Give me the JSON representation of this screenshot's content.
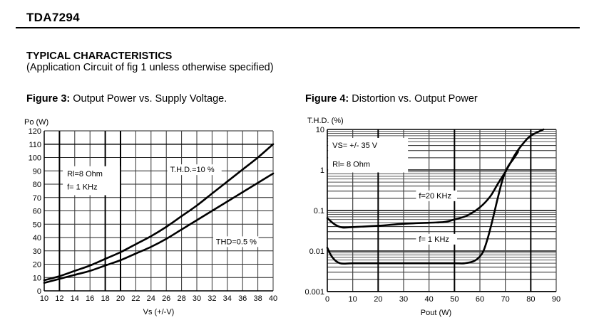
{
  "header": {
    "doc_title": "TDA7294",
    "section_title": "TYPICAL CHARACTERISTICS",
    "section_subtitle": "(Application Circuit of fig 1 unless otherwise specified)"
  },
  "figures": [
    {
      "label": "Figure 3:",
      "caption": "Output Power vs. Supply Voltage."
    },
    {
      "label": "Figure 4:",
      "caption": "Distortion vs. Output Power"
    }
  ],
  "chart_data": [
    {
      "type": "line",
      "title": "Output Power vs. Supply Voltage",
      "xlabel": "Vs (+/-V)",
      "ylabel": "Po (W)",
      "xlim": [
        10,
        40
      ],
      "ylim": [
        0,
        120
      ],
      "xscale": "linear",
      "yscale": "linear",
      "grid": true,
      "x_ticks": [
        "10",
        "12",
        "14",
        "16",
        "18",
        "20",
        "22",
        "24",
        "26",
        "28",
        "30",
        "32",
        "34",
        "36",
        "38",
        "40"
      ],
      "y_ticks": [
        "0",
        "10",
        "20",
        "30",
        "40",
        "50",
        "60",
        "70",
        "80",
        "90",
        "100",
        "110",
        "120"
      ],
      "annotations": [
        {
          "text": "Rl=8 Ohm",
          "x": 13,
          "y": 86
        },
        {
          "text": "f= 1 KHz",
          "x": 13,
          "y": 76
        }
      ],
      "series": [
        {
          "name": "T.H.D.=10 %",
          "label_at": {
            "x": 26.5,
            "y": 89
          },
          "x": [
            10,
            12,
            14,
            16,
            18,
            20,
            22,
            24,
            26,
            28,
            30,
            32,
            34,
            36,
            38,
            40
          ],
          "y": [
            8,
            11,
            15,
            19,
            24,
            29,
            35,
            41,
            48,
            56,
            64,
            73,
            82,
            91,
            100,
            110
          ]
        },
        {
          "name": "THD=0.5 %",
          "label_at": {
            "x": 32.5,
            "y": 35
          },
          "x": [
            10,
            12,
            14,
            16,
            18,
            20,
            22,
            24,
            26,
            28,
            30,
            32,
            34,
            36,
            38,
            40
          ],
          "y": [
            6,
            9,
            12,
            15,
            19,
            23,
            28,
            33,
            39,
            46,
            53,
            60,
            67,
            74,
            81,
            88
          ]
        }
      ]
    },
    {
      "type": "line",
      "title": "Distortion vs. Output Power",
      "xlabel": "Pout (W)",
      "ylabel": "T.H.D. (%)",
      "xlim": [
        0,
        90
      ],
      "ylim": [
        0.001,
        10
      ],
      "xscale": "linear",
      "yscale": "log",
      "grid": true,
      "x_ticks": [
        "0",
        "10",
        "20",
        "30",
        "40",
        "50",
        "60",
        "70",
        "80",
        "90"
      ],
      "y_ticks": [
        "0.001",
        "0.01",
        "0.1",
        "1",
        "10"
      ],
      "annotations": [
        {
          "text": "VS= +/- 35 V",
          "x": 2,
          "y": 3.5
        },
        {
          "text": "Rl= 8 Ohm",
          "x": 2,
          "y": 1.2
        }
      ],
      "series": [
        {
          "name": "f=20 KHz",
          "label_at": {
            "x": 36,
            "y": 0.2
          },
          "x": [
            0,
            3,
            6,
            10,
            20,
            30,
            40,
            46,
            50,
            55,
            60,
            64,
            67,
            70,
            72,
            74,
            77,
            80,
            85
          ],
          "y": [
            0.065,
            0.045,
            0.038,
            0.039,
            0.042,
            0.047,
            0.05,
            0.052,
            0.06,
            0.075,
            0.12,
            0.22,
            0.45,
            0.9,
            1.5,
            2.5,
            4.5,
            7,
            10
          ]
        },
        {
          "name": "f= 1 KHz",
          "label_at": {
            "x": 36,
            "y": 0.017
          },
          "x": [
            0,
            2,
            5,
            10,
            20,
            30,
            40,
            50,
            54,
            58,
            61,
            63,
            65,
            67,
            69,
            71,
            73,
            75
          ],
          "y": [
            0.012,
            0.007,
            0.005,
            0.005,
            0.005,
            0.005,
            0.005,
            0.005,
            0.005,
            0.0058,
            0.009,
            0.02,
            0.06,
            0.2,
            0.6,
            1.2,
            1.8,
            2.8
          ]
        }
      ]
    }
  ]
}
